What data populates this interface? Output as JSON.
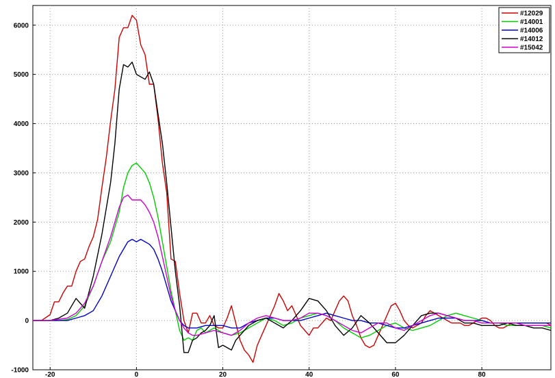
{
  "chart_data": {
    "type": "line",
    "title": "",
    "xlabel": "",
    "ylabel": "",
    "xlim": [
      -24,
      96
    ],
    "ylim": [
      -1000,
      6400
    ],
    "xticks": [
      -20,
      0,
      20,
      40,
      60,
      80
    ],
    "yticks": [
      -1000,
      0,
      1000,
      2000,
      3000,
      4000,
      5000,
      6000
    ],
    "grid": true,
    "legend_position": "top-right",
    "series": [
      {
        "name": "#12029",
        "color": "#cc0000",
        "x": [
          -24,
          -22,
          -20,
          -19,
          -18,
          -17,
          -16,
          -15,
          -14,
          -13,
          -12,
          -11,
          -10,
          -9,
          -8,
          -7,
          -6,
          -5,
          -4,
          -3,
          -2,
          -1,
          0,
          1,
          2,
          3,
          4,
          5,
          6,
          7,
          8,
          9,
          10,
          11,
          12,
          13,
          14,
          15,
          16,
          17,
          18,
          19,
          20,
          21,
          22,
          23,
          24,
          25,
          26,
          27,
          28,
          29,
          30,
          31,
          32,
          33,
          34,
          35,
          36,
          37,
          38,
          39,
          40,
          41,
          42,
          43,
          44,
          45,
          46,
          47,
          48,
          49,
          50,
          51,
          52,
          53,
          54,
          55,
          56,
          57,
          58,
          59,
          60,
          61,
          62,
          63,
          64,
          65,
          66,
          67,
          68,
          69,
          70,
          71,
          72,
          73,
          74,
          75,
          76,
          77,
          78,
          79,
          80,
          81,
          82,
          83,
          84,
          85,
          86,
          87,
          88,
          89,
          90,
          91,
          92,
          93,
          94,
          95,
          96
        ],
        "y": [
          0,
          0,
          120,
          380,
          380,
          560,
          700,
          700,
          1000,
          1200,
          1250,
          1500,
          1700,
          2050,
          2700,
          3300,
          4050,
          4700,
          5750,
          5950,
          5950,
          6200,
          6100,
          5600,
          5400,
          4800,
          4800,
          4100,
          3200,
          2600,
          1250,
          1200,
          550,
          0,
          -250,
          150,
          150,
          -50,
          -50,
          100,
          -100,
          -150,
          -150,
          50,
          300,
          -50,
          -400,
          -600,
          -700,
          -850,
          -500,
          -300,
          -100,
          100,
          300,
          550,
          400,
          200,
          300,
          100,
          -100,
          -200,
          -300,
          -150,
          -150,
          -50,
          50,
          0,
          200,
          400,
          500,
          400,
          100,
          -100,
          -350,
          -500,
          -550,
          -500,
          -300,
          -100,
          100,
          300,
          350,
          200,
          0,
          -100,
          -150,
          -100,
          -50,
          100,
          200,
          150,
          100,
          50,
          0,
          -50,
          -50,
          -50,
          -100,
          -100,
          -50,
          0,
          50,
          50,
          0,
          -100,
          -150,
          -150,
          -100,
          -50,
          -50,
          -50,
          -50,
          -50,
          -50,
          -50,
          -50,
          -50,
          -100
        ]
      },
      {
        "name": "#14001",
        "color": "#00cc00",
        "x": [
          -24,
          -20,
          -18,
          -16,
          -14,
          -12,
          -10,
          -8,
          -6,
          -4,
          -3,
          -2,
          -1,
          0,
          1,
          2,
          3,
          4,
          5,
          6,
          7,
          8,
          9,
          10,
          11,
          12,
          13,
          14,
          15,
          16,
          17,
          18,
          20,
          22,
          24,
          26,
          28,
          30,
          32,
          34,
          36,
          38,
          40,
          42,
          44,
          46,
          48,
          50,
          52,
          54,
          56,
          58,
          60,
          62,
          64,
          66,
          68,
          70,
          72,
          74,
          76,
          78,
          80,
          82,
          84,
          86,
          88,
          90,
          92,
          94,
          96
        ],
        "y": [
          0,
          0,
          0,
          20,
          100,
          300,
          700,
          1200,
          1600,
          2200,
          2700,
          3000,
          3150,
          3200,
          3100,
          3000,
          2800,
          2500,
          2100,
          1600,
          1100,
          600,
          200,
          -200,
          -400,
          -350,
          -400,
          -200,
          -150,
          -250,
          -200,
          -150,
          -250,
          -300,
          -250,
          -150,
          -50,
          50,
          0,
          -100,
          -50,
          50,
          100,
          150,
          100,
          0,
          -150,
          -250,
          -350,
          -300,
          -200,
          -100,
          -50,
          -150,
          -200,
          -150,
          -100,
          0,
          100,
          150,
          100,
          50,
          0,
          -50,
          -50,
          -100,
          -100,
          -100,
          -100,
          -100,
          -150
        ]
      },
      {
        "name": "#14006",
        "color": "#0000cc",
        "x": [
          -24,
          -20,
          -16,
          -14,
          -12,
          -10,
          -8,
          -6,
          -4,
          -2,
          -1,
          0,
          1,
          2,
          3,
          4,
          5,
          6,
          7,
          8,
          9,
          10,
          11,
          12,
          14,
          16,
          18,
          20,
          22,
          24,
          26,
          28,
          30,
          32,
          34,
          36,
          38,
          40,
          42,
          44,
          46,
          48,
          50,
          52,
          54,
          56,
          58,
          60,
          62,
          64,
          66,
          68,
          70,
          72,
          74,
          76,
          78,
          80,
          82,
          84,
          86,
          88,
          90,
          92,
          94,
          96
        ],
        "y": [
          0,
          0,
          0,
          50,
          100,
          200,
          500,
          900,
          1300,
          1600,
          1650,
          1600,
          1650,
          1600,
          1550,
          1450,
          1250,
          1000,
          700,
          400,
          200,
          0,
          -100,
          -150,
          -150,
          -100,
          -100,
          -100,
          -150,
          -150,
          -50,
          0,
          50,
          50,
          0,
          0,
          0,
          50,
          100,
          150,
          100,
          50,
          0,
          0,
          -50,
          -50,
          -100,
          -150,
          -150,
          -100,
          -50,
          0,
          50,
          50,
          50,
          0,
          0,
          0,
          -50,
          -50,
          -50,
          -50,
          -50,
          -50,
          -50,
          -50
        ]
      },
      {
        "name": "#14012",
        "color": "#000000",
        "x": [
          -24,
          -20,
          -18,
          -16,
          -14,
          -12,
          -10,
          -8,
          -6,
          -5,
          -4,
          -3,
          -2,
          -1,
          0,
          1,
          2,
          3,
          4,
          5,
          6,
          7,
          8,
          9,
          10,
          11,
          12,
          13,
          14,
          15,
          16,
          17,
          18,
          19,
          20,
          21,
          22,
          23,
          24,
          25,
          26,
          28,
          30,
          32,
          34,
          36,
          38,
          40,
          42,
          44,
          46,
          48,
          50,
          52,
          54,
          56,
          58,
          60,
          62,
          64,
          66,
          68,
          70,
          72,
          74,
          76,
          78,
          80,
          82,
          84,
          86,
          88,
          90,
          92,
          94,
          96
        ],
        "y": [
          0,
          0,
          50,
          150,
          450,
          250,
          900,
          1750,
          2800,
          3600,
          4700,
          5200,
          5150,
          5250,
          5000,
          4950,
          4900,
          5050,
          4800,
          4200,
          3600,
          2800,
          1900,
          1000,
          300,
          -650,
          -650,
          -400,
          -350,
          -250,
          -200,
          -100,
          100,
          -550,
          -500,
          -550,
          -600,
          -400,
          -300,
          -200,
          -100,
          0,
          50,
          -50,
          -150,
          0,
          200,
          450,
          400,
          200,
          -100,
          -300,
          -150,
          100,
          -50,
          -250,
          -450,
          -450,
          -300,
          -100,
          100,
          150,
          150,
          100,
          50,
          -50,
          -50,
          -100,
          -100,
          -100,
          -50,
          -100,
          -100,
          -150,
          -150,
          -200
        ]
      },
      {
        "name": "#15042",
        "color": "#cc00cc",
        "x": [
          -24,
          -20,
          -16,
          -14,
          -12,
          -10,
          -8,
          -6,
          -5,
          -4,
          -3,
          -2,
          -1,
          0,
          1,
          2,
          3,
          4,
          5,
          6,
          7,
          8,
          9,
          10,
          11,
          12,
          13,
          14,
          16,
          18,
          20,
          22,
          24,
          26,
          28,
          30,
          32,
          34,
          36,
          38,
          40,
          42,
          44,
          46,
          48,
          50,
          52,
          54,
          56,
          58,
          60,
          62,
          64,
          66,
          68,
          70,
          72,
          74,
          76,
          78,
          80,
          82,
          84,
          86,
          88,
          90,
          92,
          94,
          96
        ],
        "y": [
          0,
          0,
          50,
          150,
          350,
          700,
          1200,
          1700,
          2000,
          2300,
          2500,
          2550,
          2450,
          2450,
          2450,
          2350,
          2200,
          2000,
          1700,
          1300,
          900,
          500,
          200,
          0,
          -150,
          -250,
          -300,
          -300,
          -250,
          -200,
          -250,
          -300,
          -200,
          -50,
          50,
          100,
          50,
          0,
          0,
          50,
          150,
          150,
          100,
          0,
          -100,
          -200,
          -250,
          -150,
          -50,
          -50,
          -150,
          -200,
          -100,
          0,
          100,
          150,
          100,
          50,
          0,
          0,
          -50,
          -50,
          -50,
          -50,
          -50,
          -100,
          -100,
          -100,
          -100
        ]
      }
    ]
  }
}
